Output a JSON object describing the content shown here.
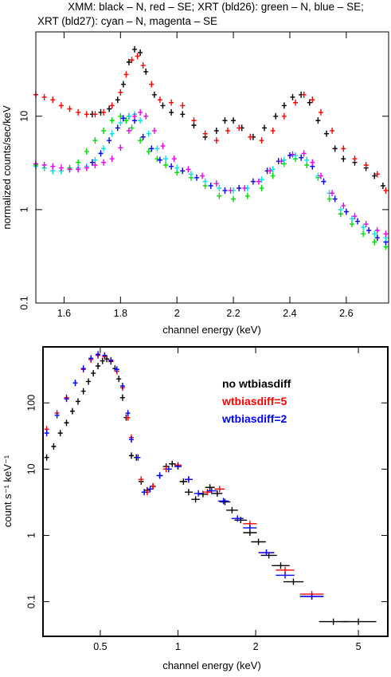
{
  "chart_data": [
    {
      "type": "scatter",
      "title_lines": [
        "XMM: black – N, red – SE; XRT (bld26): green – N, blue – SE;",
        "XRT (bld27): cyan – N, magenta – SE"
      ],
      "xlabel": "channel energy (keV)",
      "ylabel": "normalized counts/sec/keV",
      "xlim": [
        1.5,
        2.75
      ],
      "ylim": [
        0.1,
        80
      ],
      "yscale": "log",
      "xticks": [
        1.6,
        1.8,
        2.0,
        2.2,
        2.4,
        2.6
      ],
      "xtick_labels": [
        "1.6",
        "1.8",
        "2",
        "2.2",
        "2.4",
        "2.6"
      ],
      "yticks": [
        0.1,
        1,
        10
      ],
      "ytick_labels": [
        "0.1",
        "1",
        "10"
      ],
      "series": [
        {
          "color": "#000000",
          "x": [
            1.7,
            1.73,
            1.76,
            1.79,
            1.81,
            1.83,
            1.85,
            1.87,
            1.89,
            1.92,
            1.95,
            1.98,
            2.02,
            2.06,
            2.1,
            2.14,
            2.17,
            2.2,
            2.23,
            2.27,
            2.31,
            2.35,
            2.38,
            2.41,
            2.44,
            2.47,
            2.5,
            2.53,
            2.56,
            2.59,
            2.63,
            2.67,
            2.7,
            2.73
          ],
          "y": [
            10.5,
            11,
            12,
            15,
            22,
            38,
            52,
            48,
            30,
            17,
            13,
            11,
            10.5,
            8,
            6,
            7,
            9,
            9,
            7.5,
            6,
            7.5,
            10,
            13,
            16,
            17,
            14,
            9,
            6.5,
            4.5,
            3.5,
            3.2,
            2.8,
            2.3,
            1.8
          ]
        },
        {
          "color": "#ff0000",
          "x": [
            1.5,
            1.53,
            1.56,
            1.59,
            1.62,
            1.65,
            1.68,
            1.71,
            1.74,
            1.77,
            1.8,
            1.82,
            1.84,
            1.86,
            1.88,
            1.91,
            1.94,
            1.98,
            2.02,
            2.06,
            2.1,
            2.14,
            2.18,
            2.22,
            2.26,
            2.3,
            2.34,
            2.38,
            2.42,
            2.45,
            2.48,
            2.51,
            2.55,
            2.59,
            2.63,
            2.67,
            2.71,
            2.74
          ],
          "y": [
            17,
            16,
            15,
            13,
            12,
            11,
            10.5,
            10.5,
            11,
            13,
            18,
            28,
            40,
            44,
            35,
            22,
            15,
            14,
            13,
            9,
            6.5,
            5.5,
            7,
            7.5,
            6,
            5.5,
            7,
            10,
            14,
            17,
            15,
            11,
            7,
            4.5,
            3.5,
            3,
            2.4,
            1.6
          ]
        },
        {
          "color": "#00dd00",
          "x": [
            1.5,
            1.53,
            1.56,
            1.59,
            1.62,
            1.65,
            1.68,
            1.71,
            1.74,
            1.77,
            1.8,
            1.82,
            1.84,
            1.87,
            1.9,
            1.93,
            1.96,
            2.0,
            2.05,
            2.1,
            2.15,
            2.2,
            2.25,
            2.3,
            2.34,
            2.38,
            2.42,
            2.46,
            2.5,
            2.54,
            2.58,
            2.62,
            2.66,
            2.7,
            2.74
          ],
          "y": [
            3.0,
            2.8,
            2.6,
            2.6,
            2.8,
            3.2,
            4.2,
            5.5,
            7,
            9,
            10,
            9,
            7.5,
            5.5,
            4.2,
            3.5,
            3.0,
            2.5,
            2.2,
            1.8,
            1.4,
            1.3,
            1.4,
            1.7,
            2.3,
            3.1,
            3.5,
            3.0,
            2.2,
            1.3,
            0.9,
            0.7,
            0.55,
            0.45,
            0.4
          ]
        },
        {
          "color": "#0000ff",
          "x": [
            1.7,
            1.73,
            1.76,
            1.79,
            1.81,
            1.83,
            1.85,
            1.88,
            1.91,
            1.94,
            1.98,
            2.02,
            2.07,
            2.12,
            2.17,
            2.22,
            2.27,
            2.32,
            2.36,
            2.4,
            2.44,
            2.48,
            2.52,
            2.56,
            2.6,
            2.64,
            2.68,
            2.71,
            2.74
          ],
          "y": [
            3.2,
            4,
            5.5,
            7.5,
            9.5,
            10,
            9,
            6,
            4.5,
            3.4,
            2.9,
            2.6,
            2.2,
            1.8,
            1.6,
            1.7,
            2.0,
            2.6,
            3.3,
            3.8,
            3.6,
            2.9,
            2.0,
            1.3,
            0.95,
            0.75,
            0.6,
            0.5,
            0.45
          ]
        },
        {
          "color": "#00e5e5",
          "x": [
            1.5,
            1.53,
            1.56,
            1.59,
            1.62,
            1.65,
            1.68,
            1.71,
            1.74,
            1.77,
            1.8,
            1.83,
            1.85,
            1.87,
            1.9,
            1.93,
            1.96,
            2.0,
            2.05,
            2.1,
            2.15,
            2.2,
            2.25,
            2.3,
            2.34,
            2.38,
            2.42,
            2.46,
            2.5,
            2.54,
            2.58,
            2.62,
            2.66,
            2.7,
            2.74
          ],
          "y": [
            2.9,
            2.8,
            2.6,
            2.6,
            2.7,
            2.8,
            2.9,
            3.4,
            4.5,
            6.5,
            8.5,
            10,
            10.5,
            9,
            6.5,
            4.5,
            3.5,
            2.8,
            2.4,
            2.0,
            1.7,
            1.6,
            1.7,
            2.1,
            2.7,
            3.4,
            3.8,
            3.4,
            2.3,
            1.5,
            1.0,
            0.8,
            0.65,
            0.55,
            0.5
          ]
        },
        {
          "color": "#ee00ee",
          "x": [
            1.5,
            1.53,
            1.56,
            1.59,
            1.62,
            1.65,
            1.68,
            1.71,
            1.74,
            1.77,
            1.8,
            1.83,
            1.85,
            1.87,
            1.89,
            1.92,
            1.95,
            1.99,
            2.04,
            2.09,
            2.14,
            2.19,
            2.24,
            2.29,
            2.33,
            2.37,
            2.41,
            2.45,
            2.48,
            2.51,
            2.55,
            2.59,
            2.63,
            2.67,
            2.71,
            2.74
          ],
          "y": [
            3.1,
            3.0,
            2.9,
            2.8,
            2.7,
            2.7,
            2.8,
            3.0,
            3.2,
            3.5,
            4.6,
            7,
            10,
            11,
            10,
            7,
            4.8,
            3.5,
            2.7,
            2.3,
            1.9,
            1.6,
            1.7,
            2.0,
            2.6,
            3.3,
            3.9,
            4.0,
            3.2,
            2.3,
            1.5,
            1.1,
            0.85,
            0.7,
            0.6,
            0.55
          ]
        }
      ]
    },
    {
      "type": "scatter",
      "xlabel": "channel energy (keV)",
      "ylabel": "count s⁻¹ keV⁻¹",
      "xlim": [
        0.3,
        6.5
      ],
      "ylim": [
        0.03,
        700
      ],
      "xscale": "log",
      "yscale": "log",
      "xticks": [
        0.5,
        1,
        2,
        5
      ],
      "xtick_labels": [
        "0.5",
        "1",
        "2",
        "5"
      ],
      "yticks": [
        0.1,
        1,
        10,
        100
      ],
      "ytick_labels": [
        "0.1",
        "1",
        "10",
        "100"
      ],
      "legend": [
        {
          "text": "no wtbiasdiff",
          "color": "#000000"
        },
        {
          "text": "wtbiasdiff=5",
          "color": "#ff0000"
        },
        {
          "text": "wtbiasdiff=2",
          "color": "#0000ff"
        }
      ],
      "series": [
        {
          "color": "#000000",
          "x": [
            0.31,
            0.33,
            0.35,
            0.37,
            0.39,
            0.41,
            0.43,
            0.45,
            0.47,
            0.49,
            0.51,
            0.53,
            0.55,
            0.57,
            0.59,
            0.61,
            0.63,
            0.66,
            0.69,
            0.72,
            0.76,
            0.8,
            0.85,
            0.9,
            0.95,
            1.0,
            1.05,
            1.1,
            1.17,
            1.25,
            1.33,
            1.42,
            1.52,
            1.62,
            1.75,
            1.9,
            2.05,
            2.25,
            2.5,
            2.8,
            3.3,
            4.0,
            5.0
          ],
          "y": [
            15,
            22,
            35,
            50,
            75,
            105,
            150,
            210,
            280,
            360,
            430,
            460,
            420,
            330,
            230,
            120,
            60,
            16,
            15,
            6.5,
            4.8,
            5.5,
            8,
            11,
            12,
            11,
            6.5,
            4.5,
            3.5,
            4.2,
            5.3,
            4.3,
            3.2,
            2.4,
            1.7,
            1.1,
            0.8,
            0.5,
            0.35,
            0.2,
            0.12,
            0.05,
            0.05
          ]
        },
        {
          "color": "#ff0000",
          "x": [
            0.31,
            0.34,
            0.37,
            0.4,
            0.43,
            0.46,
            0.49,
            0.52,
            0.55,
            0.58,
            0.61,
            0.64,
            0.66,
            0.72,
            0.76,
            0.8,
            0.9,
            1.0,
            1.1,
            1.3,
            1.45,
            1.9,
            2.2,
            2.6,
            3.3
          ],
          "y": [
            40,
            70,
            120,
            200,
            320,
            450,
            520,
            500,
            430,
            300,
            170,
            60,
            30,
            7,
            4.5,
            5.5,
            10,
            11.5,
            7,
            4.5,
            5,
            1.5,
            0.55,
            0.3,
            0.13
          ]
        },
        {
          "color": "#0000ff",
          "x": [
            0.31,
            0.34,
            0.37,
            0.4,
            0.43,
            0.46,
            0.49,
            0.52,
            0.55,
            0.58,
            0.61,
            0.64,
            0.66,
            0.7,
            0.74,
            0.78,
            0.85,
            0.92,
            1.0,
            1.1,
            1.2,
            1.35,
            1.5,
            1.7,
            1.9,
            2.2,
            2.6,
            3.3
          ],
          "y": [
            35,
            65,
            115,
            200,
            330,
            470,
            540,
            520,
            440,
            320,
            180,
            70,
            28,
            15,
            4.5,
            5,
            8,
            10,
            11,
            7,
            4.3,
            4.7,
            3.3,
            1.8,
            1.3,
            0.55,
            0.25,
            0.12
          ]
        }
      ]
    }
  ]
}
